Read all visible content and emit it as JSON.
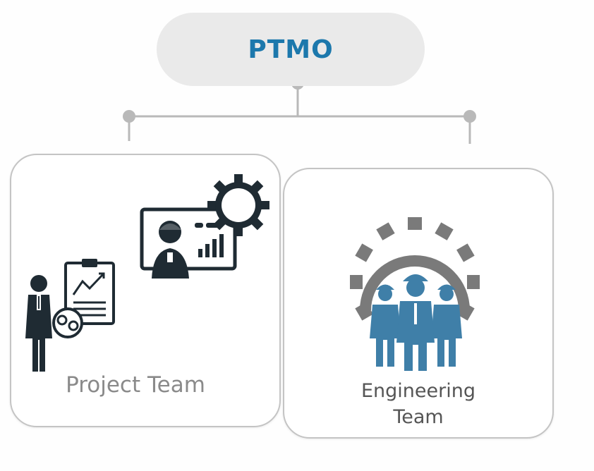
{
  "root": {
    "label": "PTMO"
  },
  "children": [
    {
      "label": "Project Team",
      "icon": "project-team-icon"
    },
    {
      "label": "Engineering Team",
      "icon": "engineering-team-icon"
    }
  ],
  "colors": {
    "accent": "#1c78ac",
    "icon_dark": "#1f2b33",
    "icon_blue": "#3f7fa8",
    "gear_gray": "#7a7a7a",
    "connector": "#b9b9b9",
    "pill_bg": "#eaeaea"
  }
}
